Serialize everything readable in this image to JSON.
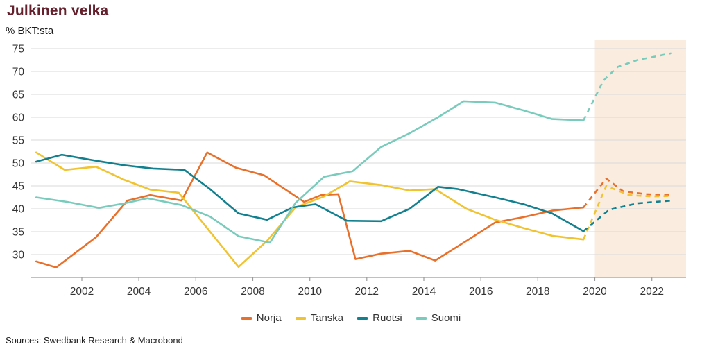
{
  "header": {
    "title": "Julkinen velka",
    "subtitle": "% BKT:sta"
  },
  "footer": {
    "sources": "Sources: Swedbank Research & Macrobond"
  },
  "chart_data": {
    "type": "line",
    "title": "Julkinen velka",
    "xlabel": "",
    "ylabel": "% BKT:sta",
    "xlim": [
      2000.2,
      2023.2
    ],
    "ylim": [
      25,
      75
    ],
    "xticks": [
      2002,
      2004,
      2006,
      2008,
      2010,
      2012,
      2014,
      2016,
      2018,
      2020,
      2022
    ],
    "yticks": [
      30,
      35,
      40,
      45,
      50,
      55,
      60,
      65,
      70,
      75
    ],
    "grid": true,
    "legend_position": "bottom",
    "forecast_band": {
      "from": 2020,
      "to": 2023.2,
      "color": "#fbece0"
    },
    "colors": {
      "grid": "#d9d9d9",
      "axis": "#9b9b9b",
      "tick_text": "#333333",
      "title": "#64202c"
    },
    "series": [
      {
        "name": "Norja",
        "color": "#e8702a",
        "solid": {
          "x": [
            2000.4,
            2001.1,
            2002.5,
            2003.6,
            2004.4,
            2005.5,
            2006.4,
            2007.4,
            2008.4,
            2009.8,
            2010.4,
            2011.0,
            2011.6,
            2012.5,
            2013.5,
            2014.4,
            2015.5,
            2016.5,
            2017.5,
            2018.5,
            2019.6
          ],
          "y": [
            28.5,
            27.2,
            33.8,
            41.8,
            43.0,
            41.8,
            52.3,
            49.0,
            47.3,
            41.5,
            43.0,
            43.2,
            29.0,
            30.2,
            30.8,
            28.7,
            33.0,
            37.0,
            38.2,
            39.6,
            40.3
          ]
        },
        "forecast": {
          "x": [
            2019.6,
            2020.4,
            2021.0,
            2021.8,
            2022.7
          ],
          "y": [
            40.3,
            46.6,
            43.8,
            43.2,
            43.0
          ]
        }
      },
      {
        "name": "Tanska",
        "color": "#f0c330",
        "solid": {
          "x": [
            2000.4,
            2001.4,
            2002.5,
            2003.5,
            2004.4,
            2005.4,
            2006.5,
            2007.5,
            2008.5,
            2009.5,
            2010.5,
            2011.4,
            2012.5,
            2013.5,
            2014.4,
            2015.5,
            2016.5,
            2017.5,
            2018.5,
            2019.6
          ],
          "y": [
            52.3,
            48.5,
            49.2,
            46.3,
            44.2,
            43.5,
            35.0,
            27.3,
            33.0,
            40.3,
            42.7,
            46.0,
            45.2,
            44.0,
            44.3,
            40.0,
            37.6,
            35.8,
            34.1,
            33.3
          ]
        },
        "forecast": {
          "x": [
            2019.6,
            2020.4,
            2021.2,
            2022.0,
            2022.7
          ],
          "y": [
            33.3,
            45.0,
            43.0,
            42.7,
            42.8
          ]
        }
      },
      {
        "name": "Ruotsi",
        "color": "#12808e",
        "solid": {
          "x": [
            2000.4,
            2001.3,
            2002.5,
            2003.5,
            2004.5,
            2005.6,
            2006.5,
            2007.5,
            2008.5,
            2009.4,
            2010.2,
            2011.3,
            2012.5,
            2013.5,
            2014.5,
            2015.2,
            2016.5,
            2017.5,
            2018.5,
            2019.6
          ],
          "y": [
            50.3,
            51.8,
            50.5,
            49.5,
            48.8,
            48.5,
            44.3,
            39.0,
            37.6,
            40.3,
            41.0,
            37.4,
            37.3,
            40.0,
            44.8,
            44.3,
            42.5,
            41.0,
            39.0,
            35.1
          ]
        },
        "forecast": {
          "x": [
            2019.6,
            2020.5,
            2021.5,
            2022.7
          ],
          "y": [
            35.1,
            39.8,
            41.2,
            41.8
          ]
        }
      },
      {
        "name": "Suomi",
        "color": "#79cbbc",
        "solid": {
          "x": [
            2000.4,
            2001.5,
            2002.6,
            2003.5,
            2004.3,
            2005.5,
            2006.5,
            2007.5,
            2008.6,
            2009.5,
            2010.5,
            2011.5,
            2012.5,
            2013.5,
            2014.5,
            2015.4,
            2016.5,
            2017.5,
            2018.5,
            2019.6
          ],
          "y": [
            42.5,
            41.5,
            40.2,
            41.2,
            42.3,
            40.8,
            38.3,
            34.0,
            32.6,
            41.3,
            47.0,
            48.2,
            53.5,
            56.5,
            60.0,
            63.5,
            63.2,
            61.5,
            59.6,
            59.3
          ]
        },
        "forecast": {
          "x": [
            2019.6,
            2020.3,
            2020.8,
            2021.5,
            2022.7
          ],
          "y": [
            59.3,
            68.0,
            71.0,
            72.5,
            74.0
          ]
        }
      }
    ]
  }
}
